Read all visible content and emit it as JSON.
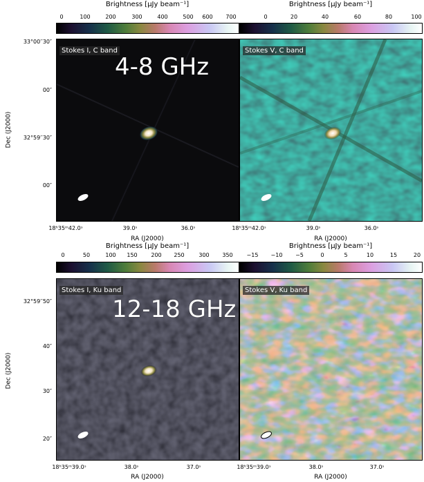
{
  "colorbar_title": "Brightness [μJy beam⁻¹]",
  "ra_axis_title": "RA (J2000)",
  "dec_axis_title": "Dec (J2000)",
  "rows": [
    {
      "band": "4-8 GHz",
      "dec_ticks": [
        "33°00′′30″",
        "00″",
        "32°59′′30″",
        "00″"
      ],
      "panels": [
        {
          "label": "Stokes I, C band",
          "ra_ticks": [
            "18ʰ35ᵐ42.0ˢ",
            "39.0ˢ",
            "36.0ˢ"
          ],
          "colorbar": {
            "ticks": [
              "0",
              "100",
              "200",
              "300",
              "400",
              "500",
              "600",
              "700"
            ],
            "range": [
              0,
              700
            ]
          }
        },
        {
          "label": "Stokes V, C band",
          "ra_ticks": [
            "18ʰ35ᵐ42.0ˢ",
            "39.0ˢ",
            "36.0ˢ"
          ],
          "colorbar": {
            "ticks": [
              "0",
              "20",
              "40",
              "60",
              "80",
              "100"
            ],
            "range": [
              0,
              100
            ]
          }
        }
      ]
    },
    {
      "band": "12-18 GHz",
      "dec_ticks": [
        "32°59′′50″",
        "40″",
        "30″",
        "20″"
      ],
      "panels": [
        {
          "label": "Stokes I, Ku band",
          "ra_ticks": [
            "18ʰ35ᵐ39.0ˢ",
            "38.0ˢ",
            "37.0ˢ"
          ],
          "colorbar": {
            "ticks": [
              "0",
              "50",
              "100",
              "150",
              "200",
              "250",
              "300",
              "350"
            ],
            "range": [
              0,
              370
            ]
          }
        },
        {
          "label": "Stokes V, Ku band",
          "ra_ticks": [
            "18ʰ35ᵐ39.0ˢ",
            "38.0ˢ",
            "37.0ˢ"
          ],
          "colorbar": {
            "ticks": [
              "−15",
              "−10",
              "−5",
              "0",
              "5",
              "10",
              "15",
              "20"
            ],
            "range": [
              -17,
              21
            ]
          }
        }
      ]
    }
  ]
}
